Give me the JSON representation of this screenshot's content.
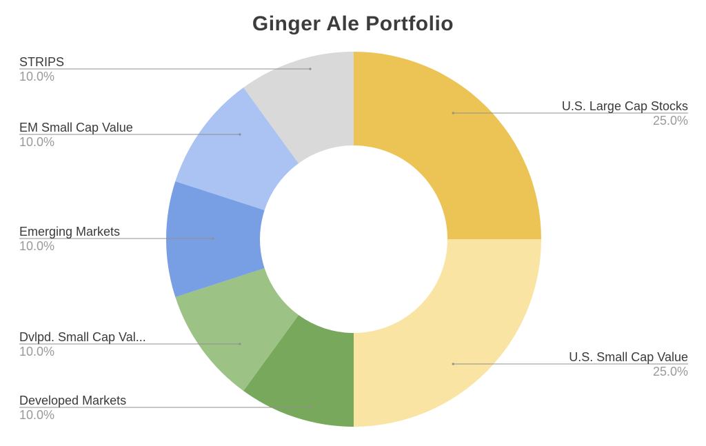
{
  "chart_data": {
    "type": "pie",
    "donut": true,
    "title": "Ginger Ale Portfolio",
    "legend": "labels-outside-with-leader-lines",
    "slices": [
      {
        "label": "U.S. Large Cap Stocks",
        "value": 25.0,
        "percent_text": "25.0%",
        "color": "#ebc455"
      },
      {
        "label": "U.S. Small Cap Value",
        "value": 25.0,
        "percent_text": "25.0%",
        "color": "#f9e4a3"
      },
      {
        "label": "Developed Markets",
        "value": 10.0,
        "percent_text": "10.0%",
        "color": "#77a85c"
      },
      {
        "label": "Dvlpd. Small Cap Val...",
        "value": 10.0,
        "percent_text": "10.0%",
        "color": "#9dc285"
      },
      {
        "label": "Emerging Markets",
        "value": 10.0,
        "percent_text": "10.0%",
        "color": "#789fe3"
      },
      {
        "label": "EM Small Cap Value",
        "value": 10.0,
        "percent_text": "10.0%",
        "color": "#aac3f2"
      },
      {
        "label": "STRIPS",
        "value": 10.0,
        "percent_text": "10.0%",
        "color": "#d9d9d9"
      }
    ]
  }
}
